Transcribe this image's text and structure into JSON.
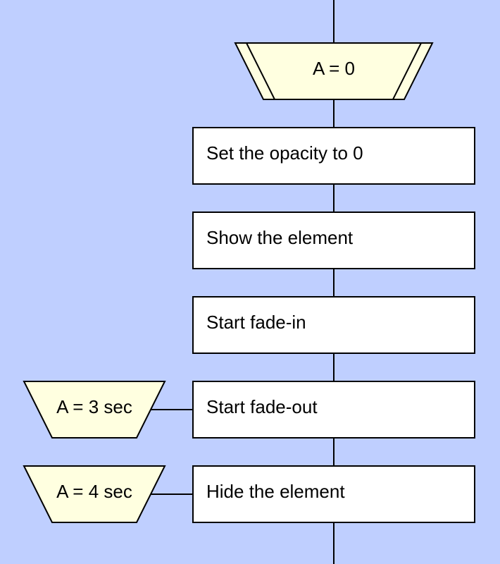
{
  "colors": {
    "background": "#bfcfff",
    "process_fill": "#ffffff",
    "timer_fill": "#ffffe0",
    "stroke": "#000000"
  },
  "start_node": {
    "label": "A = 0"
  },
  "steps": [
    {
      "label": "Set the opacity to 0"
    },
    {
      "label": "Show the element"
    },
    {
      "label": "Start fade-in"
    },
    {
      "label": "Start fade-out",
      "timer": "A = 3 sec"
    },
    {
      "label": "Hide the element",
      "timer": "A = 4 sec"
    }
  ]
}
